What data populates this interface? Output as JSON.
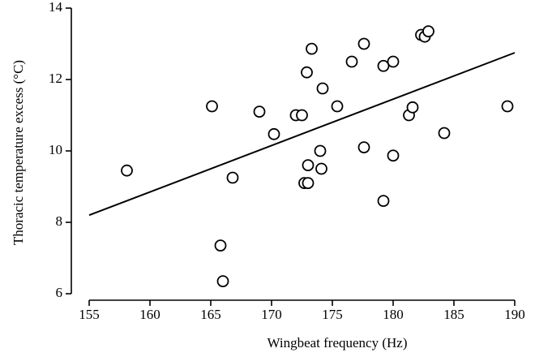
{
  "chart_data": {
    "type": "scatter",
    "xlabel": "Wingbeat frequency (Hz)",
    "ylabel": "Thoracic temperature excess (°C)",
    "x": [
      158.1,
      165.1,
      165.8,
      166.0,
      166.8,
      169.0,
      170.2,
      172.0,
      172.5,
      173.3,
      172.9,
      173.0,
      172.7,
      173.0,
      174.0,
      174.1,
      174.2,
      175.4,
      176.6,
      177.6,
      177.6,
      179.2,
      179.2,
      180.0,
      180.0,
      181.3,
      181.6,
      182.3,
      182.6,
      182.9,
      184.2,
      189.4
    ],
    "values": [
      9.45,
      11.25,
      7.35,
      6.35,
      9.25,
      11.1,
      10.47,
      11.0,
      11.0,
      12.86,
      12.2,
      9.6,
      9.1,
      9.1,
      10.0,
      9.5,
      11.75,
      11.25,
      12.5,
      13.0,
      10.1,
      12.38,
      8.6,
      12.5,
      9.87,
      11.0,
      11.22,
      13.25,
      13.2,
      13.35,
      10.5,
      11.25
    ],
    "fit_line": {
      "x": [
        155,
        190
      ],
      "y": [
        8.2,
        12.75
      ]
    },
    "xlim": [
      155,
      190
    ],
    "ylim": [
      6,
      14
    ],
    "xticks": [
      155,
      160,
      165,
      170,
      175,
      180,
      185,
      190
    ],
    "yticks": [
      6,
      8,
      10,
      12,
      14
    ]
  }
}
